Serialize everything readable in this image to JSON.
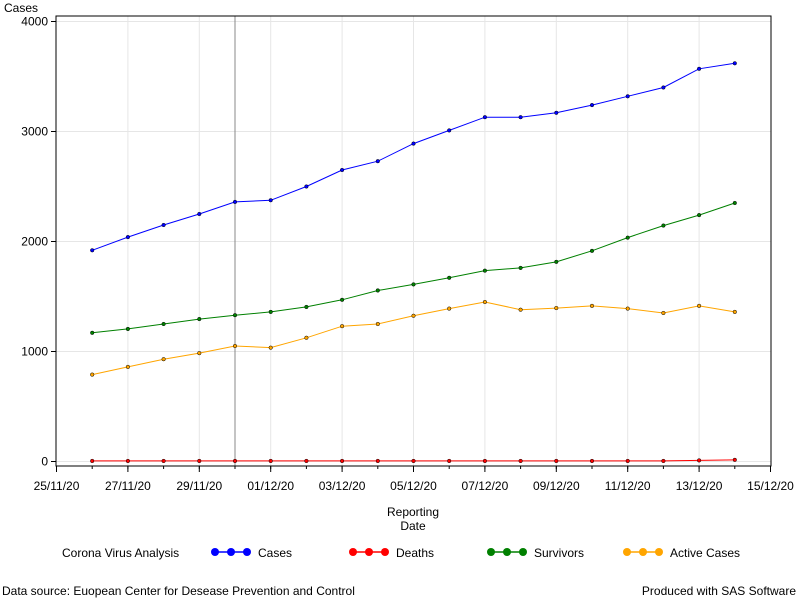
{
  "chart_data": {
    "type": "line",
    "ylabel": "Cases",
    "xlabel_lines": [
      "Reporting",
      "Date"
    ],
    "ylim": [
      0,
      4000
    ],
    "yticks": [
      0,
      1000,
      2000,
      3000,
      4000
    ],
    "xlim": [
      "2020-11-25",
      "2020-12-15"
    ],
    "xticks": [
      "25/11/20",
      "27/11/20",
      "29/11/20",
      "01/12/20",
      "03/12/20",
      "05/12/20",
      "07/12/20",
      "09/12/20",
      "11/12/20",
      "13/12/20",
      "15/12/20"
    ],
    "grid": true,
    "reference_line_date": "2020-11-30",
    "x": [
      "2020-11-26",
      "2020-11-27",
      "2020-11-28",
      "2020-11-29",
      "2020-11-30",
      "2020-12-01",
      "2020-12-02",
      "2020-12-03",
      "2020-12-04",
      "2020-12-05",
      "2020-12-06",
      "2020-12-07",
      "2020-12-08",
      "2020-12-09",
      "2020-12-10",
      "2020-12-11",
      "2020-12-12",
      "2020-12-13",
      "2020-12-14"
    ],
    "series": [
      {
        "name": "Cases",
        "color": "#0000ff",
        "values": [
          1920,
          2040,
          2150,
          2250,
          2360,
          2375,
          2500,
          2650,
          2730,
          2890,
          3010,
          3130,
          3130,
          3170,
          3240,
          3320,
          3400,
          3570,
          3620
        ]
      },
      {
        "name": "Deaths",
        "color": "#ff0000",
        "values": [
          5,
          5,
          5,
          5,
          5,
          5,
          5,
          5,
          5,
          5,
          5,
          5,
          5,
          5,
          5,
          5,
          5,
          10,
          15
        ]
      },
      {
        "name": "Survivors",
        "color": "#008000",
        "values": [
          1170,
          1205,
          1250,
          1295,
          1330,
          1360,
          1405,
          1470,
          1555,
          1610,
          1670,
          1735,
          1760,
          1815,
          1915,
          2035,
          2145,
          2240,
          2350
        ]
      },
      {
        "name": "Active Cases",
        "color": "#ffa500",
        "values": [
          790,
          860,
          930,
          985,
          1050,
          1035,
          1125,
          1230,
          1250,
          1325,
          1390,
          1450,
          1380,
          1395,
          1415,
          1390,
          1350,
          1415,
          1360
        ]
      }
    ],
    "legend_title": "Corona Virus Analysis",
    "legend_position": "bottom"
  },
  "footnotes": {
    "left": "Data source: Euopean Center for Desease Prevention and Control",
    "right": "Produced with SAS Software"
  }
}
